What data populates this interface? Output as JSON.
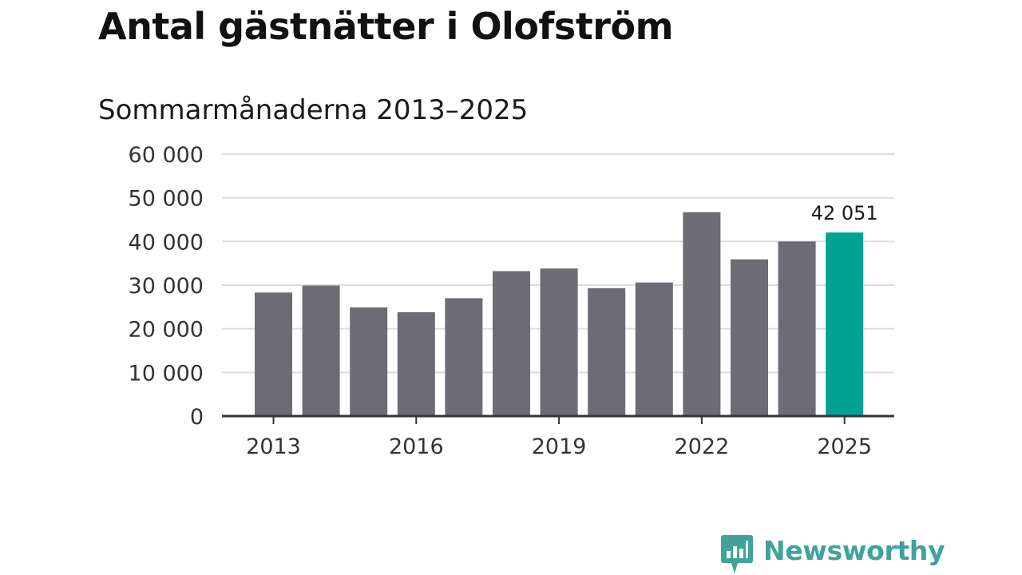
{
  "chart_data": {
    "type": "bar",
    "title": "Antal gästnätter i Olofström",
    "subtitle": "Sommarmånaderna 2013–2025",
    "categories": [
      "2013",
      "2014",
      "2015",
      "2016",
      "2017",
      "2018",
      "2019",
      "2020",
      "2021",
      "2022",
      "2023",
      "2024",
      "2025"
    ],
    "values": [
      28300,
      29900,
      24900,
      23800,
      27000,
      33200,
      33800,
      29300,
      30600,
      46700,
      35900,
      40000,
      42051
    ],
    "ylim": [
      0,
      60000
    ],
    "yticks": [
      0,
      10000,
      20000,
      30000,
      40000,
      50000,
      60000
    ],
    "ytick_labels": [
      "0",
      "10 000",
      "20 000",
      "30 000",
      "40 000",
      "50 000",
      "60 000"
    ],
    "xtick_labels": [
      "2013",
      "2016",
      "2019",
      "2022",
      "2025"
    ],
    "xtick_years": [
      "2013",
      "2016",
      "2019",
      "2022",
      "2025"
    ],
    "highlight": {
      "category": "2025",
      "label": "42 051"
    },
    "grid": true,
    "colors": {
      "bar": "#6d6c72",
      "highlight": "#00a296",
      "grid": "#dcdcdc",
      "axis": "#333333"
    }
  },
  "branding": {
    "logo_text": "Newsworthy",
    "logo_color": "#3fa39c"
  }
}
